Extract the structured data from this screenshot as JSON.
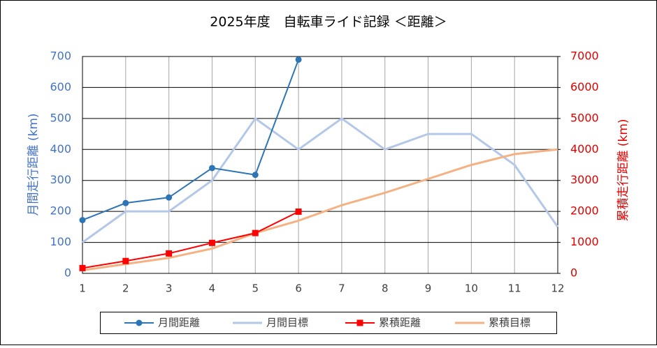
{
  "chart_data": {
    "type": "line",
    "title": "2025年度　自転車ライド記録 ＜距離＞",
    "y_label": "月間走行距離 (km)",
    "y2_label": "累積走行距離 (km)",
    "x": [
      1,
      2,
      3,
      4,
      5,
      6,
      7,
      8,
      9,
      10,
      11,
      12
    ],
    "xlim": [
      1,
      12
    ],
    "xticks": [
      1,
      2,
      3,
      4,
      5,
      6,
      7,
      8,
      9,
      10,
      11,
      12
    ],
    "ylim": [
      0,
      700
    ],
    "yticks": [
      0,
      100,
      200,
      300,
      400,
      500,
      600,
      700
    ],
    "y2lim": [
      0,
      7000
    ],
    "y2ticks": [
      0,
      1000,
      2000,
      3000,
      4000,
      5000,
      6000,
      7000
    ],
    "grid": true,
    "legend": "bottom",
    "series": [
      {
        "name": "月間距離",
        "color": "#2e75b6",
        "marker": "circle",
        "values": [
          172,
          227,
          245,
          340,
          318,
          690,
          null,
          null,
          null,
          null,
          null,
          null
        ]
      },
      {
        "name": "月間目標",
        "color": "#b4c7e7",
        "values": [
          100,
          200,
          200,
          300,
          500,
          400,
          500,
          400,
          450,
          450,
          350,
          150
        ]
      },
      {
        "name": "累積距離",
        "color": "#ff0000",
        "marker": "square",
        "axis": "y2",
        "values": [
          172,
          399,
          644,
          984,
          1302,
          1992,
          null,
          null,
          null,
          null,
          null,
          null
        ]
      },
      {
        "name": "累積目標",
        "color": "#f4b183",
        "axis": "y2",
        "values": [
          100,
          300,
          500,
          800,
          1300,
          1700,
          2200,
          2600,
          3050,
          3500,
          3850,
          4000
        ]
      }
    ]
  }
}
